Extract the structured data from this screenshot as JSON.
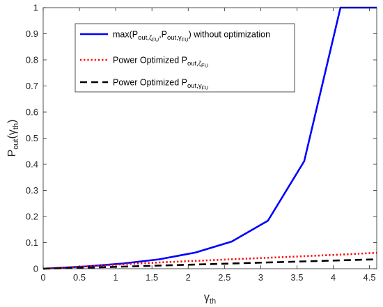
{
  "chart_data": {
    "type": "line",
    "xlim": [
      0,
      4.6
    ],
    "ylim": [
      0,
      1
    ],
    "xticks": [
      "0",
      "0.5",
      "1",
      "1.5",
      "2",
      "2.5",
      "3",
      "3.5",
      "4",
      "4.5"
    ],
    "yticks": [
      "0",
      "0.1",
      "0.2",
      "0.3",
      "0.4",
      "0.5",
      "0.6",
      "0.7",
      "0.8",
      "0.9",
      "1"
    ],
    "xlabel": {
      "base": "γ",
      "sub": "th"
    },
    "ylabel": {
      "base": "P",
      "sub": "out",
      "paren_open": "(",
      "inner_base": "γ",
      "inner_sub": "th",
      "paren_close": ")"
    },
    "grid": false,
    "legend_position": "upper-left inside",
    "series": [
      {
        "color": "#0000ff",
        "dash": "solid",
        "legend": {
          "parts": [
            {
              "t": "max(P",
              "s": "normal"
            },
            {
              "t": "out,",
              "s": "sub"
            },
            {
              "t": "ζ",
              "s": "sub"
            },
            {
              "t": "FU",
              "s": "subsub"
            },
            {
              "t": ",P",
              "s": "normal"
            },
            {
              "t": "out,",
              "s": "sub"
            },
            {
              "t": "γ",
              "s": "sub"
            },
            {
              "t": "FU",
              "s": "subsub"
            },
            {
              "t": ") without optimization",
              "s": "normal"
            }
          ]
        },
        "x": [
          0,
          0.6,
          1.1,
          1.6,
          2.1,
          2.6,
          3.1,
          3.6,
          4.1,
          4.6
        ],
        "y": [
          0,
          0.009,
          0.02,
          0.036,
          0.062,
          0.104,
          0.184,
          0.412,
          1.0,
          1.0
        ]
      },
      {
        "color": "#ff0000",
        "dash": "dotted",
        "legend": {
          "parts": [
            {
              "t": "Power Optimized P",
              "s": "normal"
            },
            {
              "t": "out,",
              "s": "sub"
            },
            {
              "t": "ζ",
              "s": "sub"
            },
            {
              "t": "FU",
              "s": "subsub"
            }
          ]
        },
        "x": [
          0,
          0.6,
          1.1,
          1.6,
          2.1,
          2.6,
          3.1,
          3.6,
          4.1,
          4.6
        ],
        "y": [
          0,
          0.009,
          0.017,
          0.024,
          0.03,
          0.036,
          0.042,
          0.048,
          0.054,
          0.061
        ]
      },
      {
        "color": "#000000",
        "dash": "dashed",
        "legend": {
          "parts": [
            {
              "t": "Power Optimized P",
              "s": "normal"
            },
            {
              "t": "out,",
              "s": "sub"
            },
            {
              "t": "γ",
              "s": "sub"
            },
            {
              "t": "FU",
              "s": "subsub"
            }
          ]
        },
        "x": [
          0,
          0.6,
          1.1,
          1.6,
          2.1,
          2.6,
          3.1,
          3.6,
          4.1,
          4.6
        ],
        "y": [
          0,
          0.004,
          0.008,
          0.012,
          0.016,
          0.02,
          0.024,
          0.028,
          0.032,
          0.036
        ]
      }
    ]
  }
}
